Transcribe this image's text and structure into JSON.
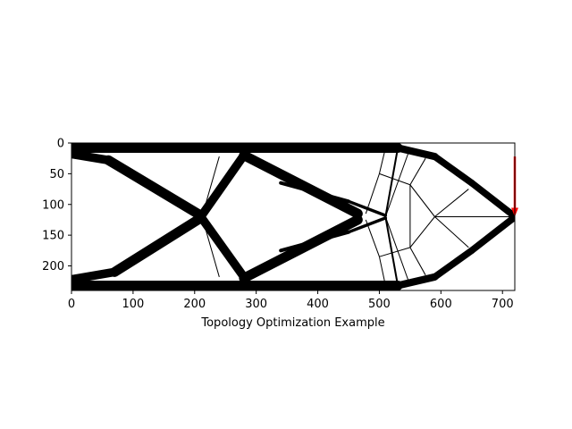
{
  "chart_data": {
    "type": "heatmap",
    "title": "",
    "xlabel": "Topology Optimization Example",
    "ylabel": "",
    "xlim": [
      0,
      720
    ],
    "ylim": [
      240,
      0
    ],
    "x_ticks": [
      0,
      100,
      200,
      300,
      400,
      500,
      600,
      700
    ],
    "y_ticks": [
      0,
      50,
      100,
      150,
      200
    ],
    "grid": false,
    "colormap": "gray_r",
    "material_color": "#000000",
    "void_color": "#ffffff",
    "load_arrow": {
      "color": "#ff0000",
      "x": 720,
      "y_start": 22,
      "y_end": 120,
      "direction": "down"
    },
    "members": [
      {
        "x1": 0,
        "y1": 8,
        "x2": 530,
        "y2": 8,
        "w": 16
      },
      {
        "x1": 530,
        "y1": 8,
        "x2": 590,
        "y2": 22,
        "w": 12
      },
      {
        "x1": 590,
        "y1": 22,
        "x2": 650,
        "y2": 65,
        "w": 11
      },
      {
        "x1": 650,
        "y1": 65,
        "x2": 718,
        "y2": 118,
        "w": 11
      },
      {
        "x1": 0,
        "y1": 232,
        "x2": 530,
        "y2": 232,
        "w": 16
      },
      {
        "x1": 530,
        "y1": 232,
        "x2": 590,
        "y2": 218,
        "w": 12
      },
      {
        "x1": 590,
        "y1": 218,
        "x2": 650,
        "y2": 175,
        "w": 11
      },
      {
        "x1": 650,
        "y1": 175,
        "x2": 718,
        "y2": 122,
        "w": 11
      },
      {
        "x1": 0,
        "y1": 18,
        "x2": 60,
        "y2": 28,
        "w": 14
      },
      {
        "x1": 60,
        "y1": 28,
        "x2": 210,
        "y2": 118,
        "w": 16
      },
      {
        "x1": 0,
        "y1": 222,
        "x2": 70,
        "y2": 210,
        "w": 14
      },
      {
        "x1": 70,
        "y1": 210,
        "x2": 210,
        "y2": 122,
        "w": 16
      },
      {
        "x1": 210,
        "y1": 120,
        "x2": 280,
        "y2": 20,
        "w": 14
      },
      {
        "x1": 210,
        "y1": 120,
        "x2": 280,
        "y2": 218,
        "w": 14
      },
      {
        "x1": 280,
        "y1": 20,
        "x2": 465,
        "y2": 115,
        "w": 16
      },
      {
        "x1": 280,
        "y1": 220,
        "x2": 465,
        "y2": 125,
        "w": 16
      },
      {
        "x1": 340,
        "y1": 65,
        "x2": 450,
        "y2": 95,
        "w": 6
      },
      {
        "x1": 340,
        "y1": 175,
        "x2": 450,
        "y2": 145,
        "w": 6
      },
      {
        "x1": 450,
        "y1": 95,
        "x2": 510,
        "y2": 118,
        "w": 5
      },
      {
        "x1": 450,
        "y1": 145,
        "x2": 510,
        "y2": 122,
        "w": 5
      },
      {
        "x1": 510,
        "y1": 120,
        "x2": 530,
        "y2": 8,
        "w": 3
      },
      {
        "x1": 510,
        "y1": 120,
        "x2": 530,
        "y2": 232,
        "w": 3
      },
      {
        "x1": 240,
        "y1": 22,
        "x2": 212,
        "y2": 120,
        "w": 1.5
      },
      {
        "x1": 212,
        "y1": 120,
        "x2": 240,
        "y2": 218,
        "w": 1.5
      },
      {
        "x1": 510,
        "y1": 8,
        "x2": 500,
        "y2": 50,
        "w": 1.5
      },
      {
        "x1": 500,
        "y1": 50,
        "x2": 478,
        "y2": 115,
        "w": 1.5
      },
      {
        "x1": 510,
        "y1": 232,
        "x2": 500,
        "y2": 185,
        "w": 1.5
      },
      {
        "x1": 500,
        "y1": 185,
        "x2": 478,
        "y2": 125,
        "w": 1.5
      },
      {
        "x1": 500,
        "y1": 50,
        "x2": 550,
        "y2": 68,
        "w": 1.5
      },
      {
        "x1": 500,
        "y1": 185,
        "x2": 550,
        "y2": 170,
        "w": 1.5
      },
      {
        "x1": 550,
        "y1": 8,
        "x2": 510,
        "y2": 120,
        "w": 1.5
      },
      {
        "x1": 550,
        "y1": 232,
        "x2": 510,
        "y2": 120,
        "w": 1.5
      },
      {
        "x1": 550,
        "y1": 68,
        "x2": 575,
        "y2": 25,
        "w": 1.5
      },
      {
        "x1": 550,
        "y1": 170,
        "x2": 575,
        "y2": 215,
        "w": 1.5
      },
      {
        "x1": 550,
        "y1": 68,
        "x2": 590,
        "y2": 120,
        "w": 1.5
      },
      {
        "x1": 550,
        "y1": 170,
        "x2": 590,
        "y2": 120,
        "w": 1.5
      },
      {
        "x1": 590,
        "y1": 120,
        "x2": 645,
        "y2": 75,
        "w": 1.5
      },
      {
        "x1": 590,
        "y1": 120,
        "x2": 645,
        "y2": 170,
        "w": 1.5
      },
      {
        "x1": 590,
        "y1": 120,
        "x2": 718,
        "y2": 120,
        "w": 1.5
      },
      {
        "x1": 550,
        "y1": 68,
        "x2": 550,
        "y2": 170,
        "w": 1.5
      }
    ]
  }
}
